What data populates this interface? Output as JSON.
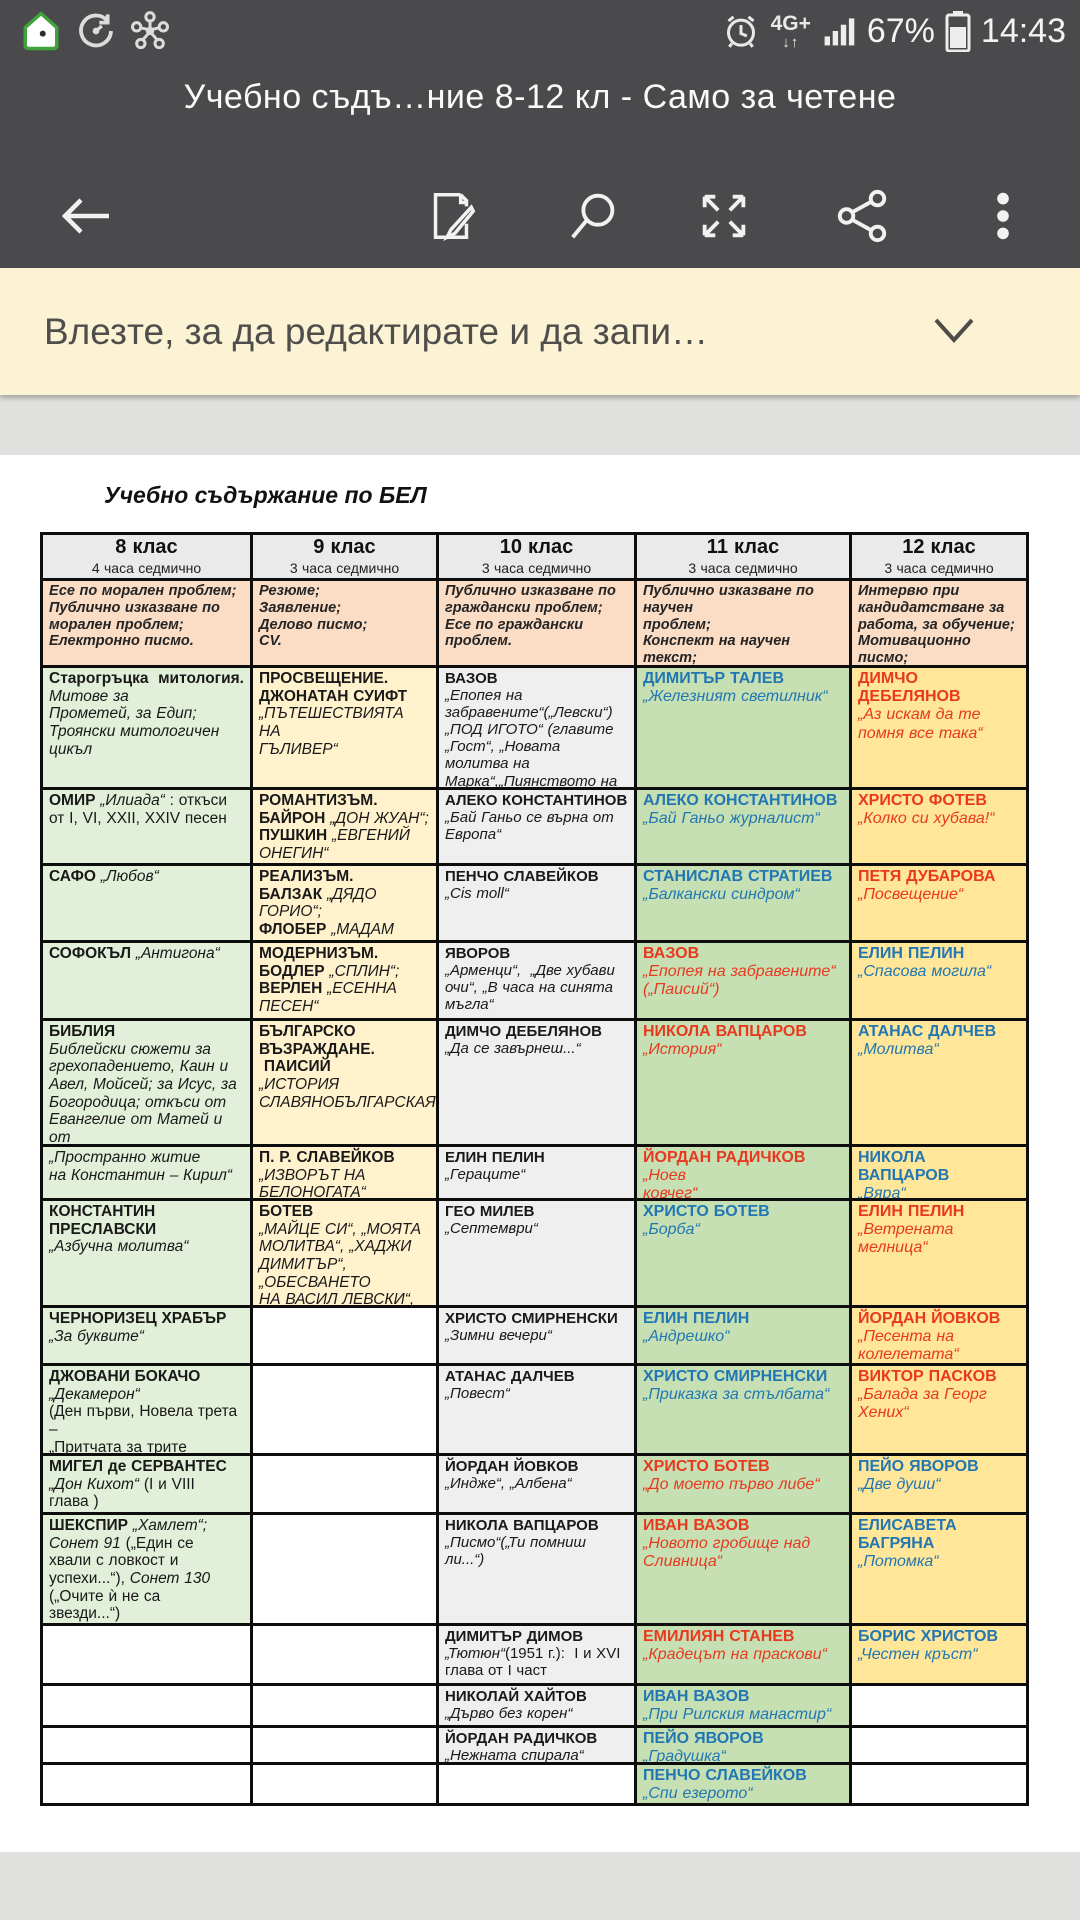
{
  "status_bar": {
    "network_type": "4G+",
    "network_arrows": "↓↑",
    "battery_percent": "67%",
    "time": "14:43",
    "icons": [
      "home-icon",
      "sync-icon",
      "molecule-icon",
      "alarm-icon",
      "signal-strength-icon",
      "battery-icon"
    ]
  },
  "app_bar": {
    "title": "Учебно съдъ…ние 8-12 кл - Само за четене",
    "buttons": [
      "back",
      "edit",
      "search",
      "fullscreen",
      "share",
      "more"
    ]
  },
  "banner": {
    "text": "Влезте, за да редактирате и да запи…",
    "chevron": "chevron-down"
  },
  "document": {
    "title": "Учебно съдържание по БЕЛ"
  },
  "colors": {
    "top_bar_bg": "#4a4a4c",
    "banner_bg": "#fbf3d3",
    "col_8_bg": "#e2efd9",
    "col_9_bg": "#fff2cc",
    "col_10_bg": "#efefef",
    "col_11_bg": "#c6e0b4",
    "col_12_bg": "#ffe699",
    "assignments_bg": "#fbdcc5",
    "header_bg": "#eaeaea",
    "blue_text": "#2277b2",
    "red_text": "#e8391f"
  },
  "table": {
    "columns": [
      {
        "grade": "8 клас",
        "hours": "4 часа седмично"
      },
      {
        "grade": "9 клас",
        "hours": "3 часа седмично"
      },
      {
        "grade": "10 клас",
        "hours": "3 часа седмично"
      },
      {
        "grade": "11 клас",
        "hours": "3 часа седмично"
      },
      {
        "grade": "12 клас",
        "hours": "3 часа седмично"
      }
    ],
    "assignments": [
      "Есе по морален проблем;\nПублично изказване по\nморален проблем;\nЕлектронно писмо.",
      "Резюме;\nЗаявление;\nДелово писмо;\nCV.",
      "Публично изказване по\nграждански проблем;\nЕсе по граждански\nпроблем.",
      "Публично изказване по научен\nпроблем;\nКонспект на научен текст;\nРеферат;\nЕсе по житейски проблем.",
      "Интервю при\nкандидатстване за\nработа, за обучение;\nМотивационно писмо;\nБиблиография."
    ],
    "rows": [
      {
        "cells": [
          {
            "runs": [
              [
                "b",
                "Старогръцка  митология."
              ],
              [
                "i",
                "\nМитове за\nПрометей, за Едип;\nТроянски митологичен\nцикъл"
              ]
            ]
          },
          {
            "runs": [
              [
                "b",
                "ПРОСВЕЩЕНИЕ.\nДЖОНАТАН СУИФТ"
              ],
              [
                "i",
                "\n„ПЪТЕШЕСТВИЯТА НА\nГЪЛИВЕР“"
              ]
            ]
          },
          {
            "runs": [
              [
                "b",
                "ВАЗОВ"
              ],
              [
                "i",
                "\n„Епопея на\nзабравените“(„Левски“)\n„ПОД ИГОТО“ (главите\n„Гост“, „Новата молитва на\nМарка“,„Пиянството на\nедин народ“)"
              ]
            ]
          },
          {
            "color": "blue",
            "runs": [
              [
                "b",
                "ДИМИТЪР ТАЛЕВ"
              ],
              [
                "i",
                "\n„Железният светилник“"
              ]
            ]
          },
          {
            "color": "red",
            "runs": [
              [
                "b",
                "ДИМЧО ДЕБЕЛЯНОВ"
              ],
              [
                "i",
                "\n„Аз искам да те\nпомня все така“"
              ]
            ]
          }
        ]
      },
      {
        "cells": [
          {
            "runs": [
              [
                "b",
                "ОМИР "
              ],
              [
                "i",
                "„Илиада“"
              ],
              [
                "r",
                " : откъси\nот I, VI, XXII, XXIV песен"
              ]
            ]
          },
          {
            "runs": [
              [
                "b",
                "РОМАНТИЗЪМ.\nБАЙРОН "
              ],
              [
                "i",
                "„ДОН ЖУАН“;\n"
              ],
              [
                "b",
                "ПУШКИН "
              ],
              [
                "i",
                "„ЕВГЕНИЙ\nОНЕГИН“"
              ]
            ]
          },
          {
            "runs": [
              [
                "b",
                "АЛЕКО КОНСТАНТИНОВ"
              ],
              [
                "i",
                "\n„Бай Ганьо се върна от\nЕвропа“"
              ]
            ]
          },
          {
            "color": "blue",
            "runs": [
              [
                "b",
                "АЛЕКО КОНСТАНТИНОВ"
              ],
              [
                "i",
                "\n„Бай Ганьо журналист“"
              ]
            ]
          },
          {
            "color": "red",
            "runs": [
              [
                "b",
                "ХРИСТО ФОТЕВ"
              ],
              [
                "i",
                "\n„Колко си хубава!“"
              ]
            ]
          }
        ]
      },
      {
        "cells": [
          {
            "runs": [
              [
                "b",
                "САФО "
              ],
              [
                "i",
                "„Любов“"
              ]
            ]
          },
          {
            "runs": [
              [
                "b",
                "РЕАЛИЗЪМ.\nБАЛЗАК "
              ],
              [
                "i",
                "„ДЯДО ГОРИО“;\n"
              ],
              [
                "b",
                "ФЛОБЕР "
              ],
              [
                "i",
                "„МАДАМ\nБОВАРИ“"
              ]
            ]
          },
          {
            "runs": [
              [
                "b",
                "ПЕНЧО СЛАВЕЙКОВ"
              ],
              [
                "i",
                "\n„Cis moll“"
              ]
            ]
          },
          {
            "color": "blue",
            "runs": [
              [
                "b",
                "СТАНИСЛАВ СТРАТИЕВ"
              ],
              [
                "i",
                "\n„Балкански синдром“"
              ]
            ]
          },
          {
            "color": "red",
            "runs": [
              [
                "b",
                "ПЕТЯ ДУБАРОВА"
              ],
              [
                "i",
                "\n„Посвещение“"
              ]
            ]
          }
        ]
      },
      {
        "cells": [
          {
            "runs": [
              [
                "b",
                "СОФОКЪЛ "
              ],
              [
                "i",
                "„Антигона“"
              ]
            ]
          },
          {
            "runs": [
              [
                "b",
                "МОДЕРНИЗЪМ.\nБОДЛЕР "
              ],
              [
                "i",
                "„СПЛИН“;\n"
              ],
              [
                "b",
                "ВЕРЛЕН "
              ],
              [
                "i",
                "„ЕСЕННА ПЕСЕН“"
              ]
            ]
          },
          {
            "runs": [
              [
                "b",
                "ЯВОРОВ"
              ],
              [
                "i",
                "\n„Арменци“,  „Две хубави\nочи“, „В часа на синята\nмъгла“"
              ]
            ]
          },
          {
            "color": "red",
            "runs": [
              [
                "b",
                "ВАЗОВ"
              ],
              [
                "i",
                "\n„Епопея на забравените“\n(„Паисий“)"
              ]
            ]
          },
          {
            "color": "blue",
            "runs": [
              [
                "b",
                "ЕЛИН ПЕЛИН"
              ],
              [
                "i",
                "\n„Спасова могила“"
              ]
            ]
          }
        ]
      },
      {
        "cells": [
          {
            "runs": [
              [
                "b",
                "БИБЛИЯ"
              ],
              [
                "i",
                "\nБиблейски сюжети за\nгрехопадението, Каин и\nАвел, Мойсей; за Исус, за\nБогородица; откъси от\nЕвангелие от Матей и от\nЕвангелие от Йоан"
              ]
            ]
          },
          {
            "runs": [
              [
                "b",
                "БЪЛГАРСКО\nВЪЗРАЖДАНЕ.\n ПАИСИЙ"
              ],
              [
                "i",
                "\n„ИСТОРИЯ\nСЛАВЯНОБЪЛГАРСКАЯ“"
              ]
            ]
          },
          {
            "runs": [
              [
                "b",
                "ДИМЧО ДЕБЕЛЯНОВ"
              ],
              [
                "i",
                "\n„Да се завърнеш...“"
              ]
            ]
          },
          {
            "color": "red",
            "runs": [
              [
                "b",
                "НИКОЛА ВАПЦАРОВ"
              ],
              [
                "i",
                "\n„История“"
              ]
            ]
          },
          {
            "color": "blue",
            "runs": [
              [
                "b",
                "АТАНАС ДАЛЧЕВ"
              ],
              [
                "i",
                "\n„Молитва“"
              ]
            ]
          }
        ]
      },
      {
        "cells": [
          {
            "runs": [
              [
                "i",
                "„Пространно житие\nна Константин – Кирил“"
              ]
            ]
          },
          {
            "runs": [
              [
                "b",
                "П. Р. СЛАВЕЙКОВ"
              ],
              [
                "i",
                "\n„ИЗВОРЪТ НА\nБЕЛОНОГАТА“"
              ]
            ]
          },
          {
            "runs": [
              [
                "b",
                "ЕЛИН ПЕЛИН"
              ],
              [
                "i",
                "\n„Гераците“"
              ]
            ]
          },
          {
            "color": "red",
            "runs": [
              [
                "b",
                "ЙОРДАН РАДИЧКОВ "
              ],
              [
                "i",
                "„Ноев\nковчег“"
              ]
            ]
          },
          {
            "color": "blue",
            "runs": [
              [
                "b",
                "НИКОЛА ВАПЦАРОВ"
              ],
              [
                "i",
                "\n„Вяра“"
              ]
            ]
          }
        ]
      },
      {
        "cells": [
          {
            "runs": [
              [
                "b",
                "КОНСТАНТИН\nПРЕСЛАВСКИ"
              ],
              [
                "i",
                "\n„Азбучна молитва“"
              ]
            ]
          },
          {
            "runs": [
              [
                "b",
                "БОТЕВ"
              ],
              [
                "i",
                "\n„МАЙЦЕ СИ“, „МОЯТА\nМОЛИТВА“, „ХАДЖИ\nДИМИТЪР“, „ОБЕСВАНЕТО\nНА ВАСИЛ ЛЕВСКИ“,\n„СТРАННИК“"
              ]
            ]
          },
          {
            "runs": [
              [
                "b",
                "ГЕО МИЛЕВ"
              ],
              [
                "i",
                "\n„Септември“"
              ]
            ]
          },
          {
            "color": "blue",
            "runs": [
              [
                "b",
                "ХРИСТО БОТЕВ"
              ],
              [
                "i",
                "\n„Борба“"
              ]
            ]
          },
          {
            "color": "red",
            "runs": [
              [
                "b",
                "ЕЛИН ПЕЛИН"
              ],
              [
                "i",
                "\n„Ветрената\nмелница“"
              ]
            ]
          }
        ]
      },
      {
        "cells": [
          {
            "runs": [
              [
                "b",
                "ЧЕРНОРИЗЕЦ ХРАБЪР"
              ],
              [
                "i",
                "\n„За буквите“"
              ]
            ]
          },
          null,
          {
            "runs": [
              [
                "b",
                "ХРИСТО СМИРНЕНСКИ"
              ],
              [
                "i",
                "\n„Зимни вечери“"
              ]
            ]
          },
          {
            "color": "blue",
            "runs": [
              [
                "b",
                "ЕЛИН ПЕЛИН"
              ],
              [
                "i",
                "\n„Андрешко“"
              ]
            ]
          },
          {
            "color": "red",
            "runs": [
              [
                "b",
                "ЙОРДАН ЙОВКОВ"
              ],
              [
                "i",
                "\n„Песента на\nколелетата“"
              ]
            ]
          }
        ]
      },
      {
        "cells": [
          {
            "runs": [
              [
                "b",
                "ДЖОВАНИ БОКАЧО"
              ],
              [
                "i",
                "\n„Декамерон“"
              ],
              [
                "r",
                "\n(Ден първи, Новела трета –\n„Притчата за трите\nпръстена“)"
              ]
            ]
          },
          null,
          {
            "runs": [
              [
                "b",
                "АТАНАС ДАЛЧЕВ"
              ],
              [
                "i",
                "\n„Повест“"
              ]
            ]
          },
          {
            "color": "blue",
            "runs": [
              [
                "b",
                "ХРИСТО СМИРНЕНСКИ"
              ],
              [
                "i",
                "\n„Приказка за стълбата“"
              ]
            ]
          },
          {
            "color": "red",
            "runs": [
              [
                "b",
                "ВИКТОР ПАСКОВ"
              ],
              [
                "i",
                "\n„Балада за Георг\nХених“"
              ]
            ]
          }
        ]
      },
      {
        "cells": [
          {
            "runs": [
              [
                "b",
                "МИГЕЛ де СЕРВАНТЕС"
              ],
              [
                "i",
                "\n„Дон Кихот“"
              ],
              [
                "r",
                " (I и VIII\nглава )"
              ]
            ]
          },
          null,
          {
            "runs": [
              [
                "b",
                "ЙОРДАН ЙОВКОВ"
              ],
              [
                "i",
                "\n„Индже“, „Албена“"
              ]
            ]
          },
          {
            "color": "red",
            "runs": [
              [
                "b",
                "ХРИСТО БОТЕВ"
              ],
              [
                "i",
                "\n„До моето първо либе“"
              ]
            ]
          },
          {
            "color": "blue",
            "runs": [
              [
                "b",
                "ПЕЙО ЯВОРОВ"
              ],
              [
                "i",
                "\n„Две души“"
              ]
            ]
          }
        ]
      },
      {
        "cells": [
          {
            "runs": [
              [
                "b",
                "ШЕКСПИР "
              ],
              [
                "i",
                "„Хамлет“;\nСонет 91 "
              ],
              [
                "r",
                "(„Един се\nхвали с ловкост и\nуспехи...“), "
              ],
              [
                "i",
                "Сонет 130\n"
              ],
              [
                "r",
                "(„Очите ѝ не са\nзвезди...“)"
              ]
            ]
          },
          null,
          {
            "runs": [
              [
                "b",
                "НИКОЛА ВАПЦАРОВ"
              ],
              [
                "i",
                "\n„Писмо“(„Ти помниш\nли...“)"
              ]
            ]
          },
          {
            "color": "red",
            "runs": [
              [
                "b",
                "ИВАН ВАЗОВ"
              ],
              [
                "i",
                "\n„Новото гробище над\nСливница“"
              ]
            ]
          },
          {
            "color": "blue",
            "runs": [
              [
                "b",
                "ЕЛИСАВЕТА БАГРЯНА"
              ],
              [
                "i",
                "\n„Потомка“"
              ]
            ]
          }
        ]
      },
      {
        "cells": [
          null,
          null,
          {
            "runs": [
              [
                "b",
                "ДИМИТЪР ДИМОВ"
              ],
              [
                "i",
                "\n„Тютюн“"
              ],
              [
                "r",
                "(1951 г.):  I и XVI\nглава от I част"
              ]
            ]
          },
          {
            "color": "red",
            "runs": [
              [
                "b",
                "ЕМИЛИЯН СТАНЕВ"
              ],
              [
                "i",
                "\n„Крадецът на праскови“"
              ]
            ]
          },
          {
            "color": "blue",
            "runs": [
              [
                "b",
                "БОРИС ХРИСТОВ"
              ],
              [
                "i",
                "\n„Честен кръст“"
              ]
            ]
          }
        ]
      },
      {
        "cells": [
          null,
          null,
          {
            "runs": [
              [
                "b",
                "НИКОЛАЙ ХАЙТОВ"
              ],
              [
                "i",
                "\n„Дърво без корен“"
              ]
            ]
          },
          {
            "color": "blue",
            "runs": [
              [
                "b",
                "ИВАН ВАЗОВ"
              ],
              [
                "i",
                "\n„При Рилския манастир“"
              ]
            ]
          },
          null
        ]
      },
      {
        "cells": [
          null,
          null,
          {
            "runs": [
              [
                "b",
                "ЙОРДАН РАДИЧКОВ"
              ],
              [
                "i",
                "\n„Нежната спирала“"
              ]
            ]
          },
          {
            "color": "blue",
            "runs": [
              [
                "b",
                "ПЕЙО ЯВОРОВ"
              ],
              [
                "i",
                "\n„Градушка“"
              ]
            ]
          },
          null
        ]
      },
      {
        "cells": [
          null,
          null,
          null,
          {
            "color": "blue",
            "runs": [
              [
                "b",
                "ПЕНЧО СЛАВЕЙКОВ"
              ],
              [
                "i",
                "\n„Спи езерото“"
              ]
            ]
          },
          null
        ]
      }
    ]
  }
}
